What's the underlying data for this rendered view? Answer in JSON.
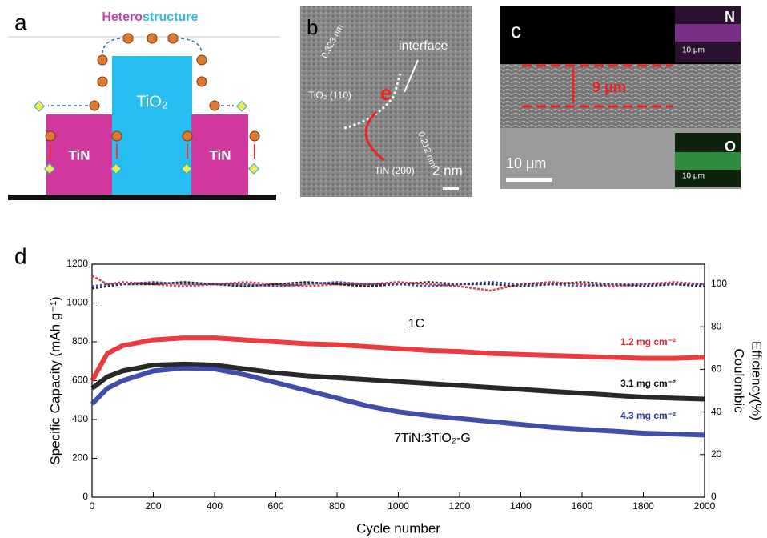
{
  "panels": {
    "a": {
      "label": "a",
      "title_part1": "Hetero",
      "title_part2": "structure",
      "tio2": "TiO₂",
      "tin_left": "TiN",
      "tin_right": "TiN"
    },
    "b": {
      "label": "b",
      "spacing1": "0.323 nm",
      "plane1": "TiO₂ (110)",
      "electron": "e",
      "interface": "interface",
      "spacing2": "0.212 nm",
      "plane2": "TiN (200)",
      "scale": "2 nm"
    },
    "c": {
      "label": "c",
      "n_map": "N",
      "n_scale": "10 μm",
      "thickness": "9 μm",
      "scale": "10 μm",
      "o_map": "O",
      "o_scale": "10 μm"
    },
    "d": {
      "label": "d"
    }
  },
  "chart_data": {
    "type": "line",
    "xlabel": "Cycle number",
    "ylabel": "Specific Capacity (mAh g⁻¹)",
    "y2label": [
      "Coulombic",
      "Efficiency(%)"
    ],
    "annotations": [
      "1C",
      "7TiN:3TiO₂-G"
    ],
    "x": [
      0,
      50,
      100,
      200,
      300,
      400,
      500,
      600,
      700,
      800,
      900,
      1000,
      1100,
      1200,
      1300,
      1400,
      1500,
      1600,
      1700,
      1800,
      1900,
      2000
    ],
    "xlim": [
      0,
      2000
    ],
    "xticks": [
      0,
      200,
      400,
      600,
      800,
      1000,
      1200,
      1400,
      1600,
      1800,
      2000
    ],
    "ylim": [
      0,
      1200
    ],
    "yticks": [
      0,
      200,
      400,
      600,
      800,
      1000,
      1200
    ],
    "y2lim": [
      0,
      109.4
    ],
    "y2ticks": [
      0,
      20,
      40,
      60,
      80,
      100
    ],
    "series": [
      {
        "name": "1.2 mg cm⁻²",
        "color": "#e8262a",
        "values": [
          600,
          740,
          780,
          810,
          820,
          820,
          810,
          800,
          790,
          785,
          775,
          765,
          755,
          750,
          740,
          735,
          730,
          725,
          720,
          715,
          715,
          720
        ]
      },
      {
        "name": "3.1 mg cm⁻²",
        "color": "#111111",
        "values": [
          560,
          620,
          650,
          680,
          685,
          680,
          660,
          640,
          625,
          615,
          605,
          595,
          585,
          575,
          565,
          555,
          545,
          535,
          525,
          515,
          510,
          505
        ]
      },
      {
        "name": "4.3 mg cm⁻²",
        "color": "#2b3aa0",
        "values": [
          480,
          560,
          600,
          650,
          665,
          660,
          630,
          590,
          550,
          510,
          470,
          440,
          420,
          405,
          390,
          375,
          360,
          350,
          340,
          330,
          325,
          320
        ]
      },
      {
        "color": "#e8262a",
        "axis": "y2",
        "values": [
          104,
          100,
          101,
          100,
          99,
          100,
          101,
          100,
          99,
          100,
          100,
          101,
          100,
          99,
          97,
          100,
          101,
          100,
          99,
          100,
          101,
          100
        ]
      },
      {
        "color": "#111111",
        "axis": "y2",
        "values": [
          98,
          99,
          100,
          100,
          101,
          100,
          99,
          100,
          101,
          100,
          99,
          100,
          101,
          100,
          100,
          99,
          100,
          101,
          100,
          99,
          100,
          99
        ]
      },
      {
        "color": "#2b3aa0",
        "axis": "y2",
        "values": [
          99,
          100,
          100,
          101,
          100,
          100,
          100,
          99,
          100,
          101,
          100,
          100,
          99,
          100,
          101,
          100,
          100,
          99,
          100,
          100,
          100,
          100
        ]
      }
    ]
  }
}
